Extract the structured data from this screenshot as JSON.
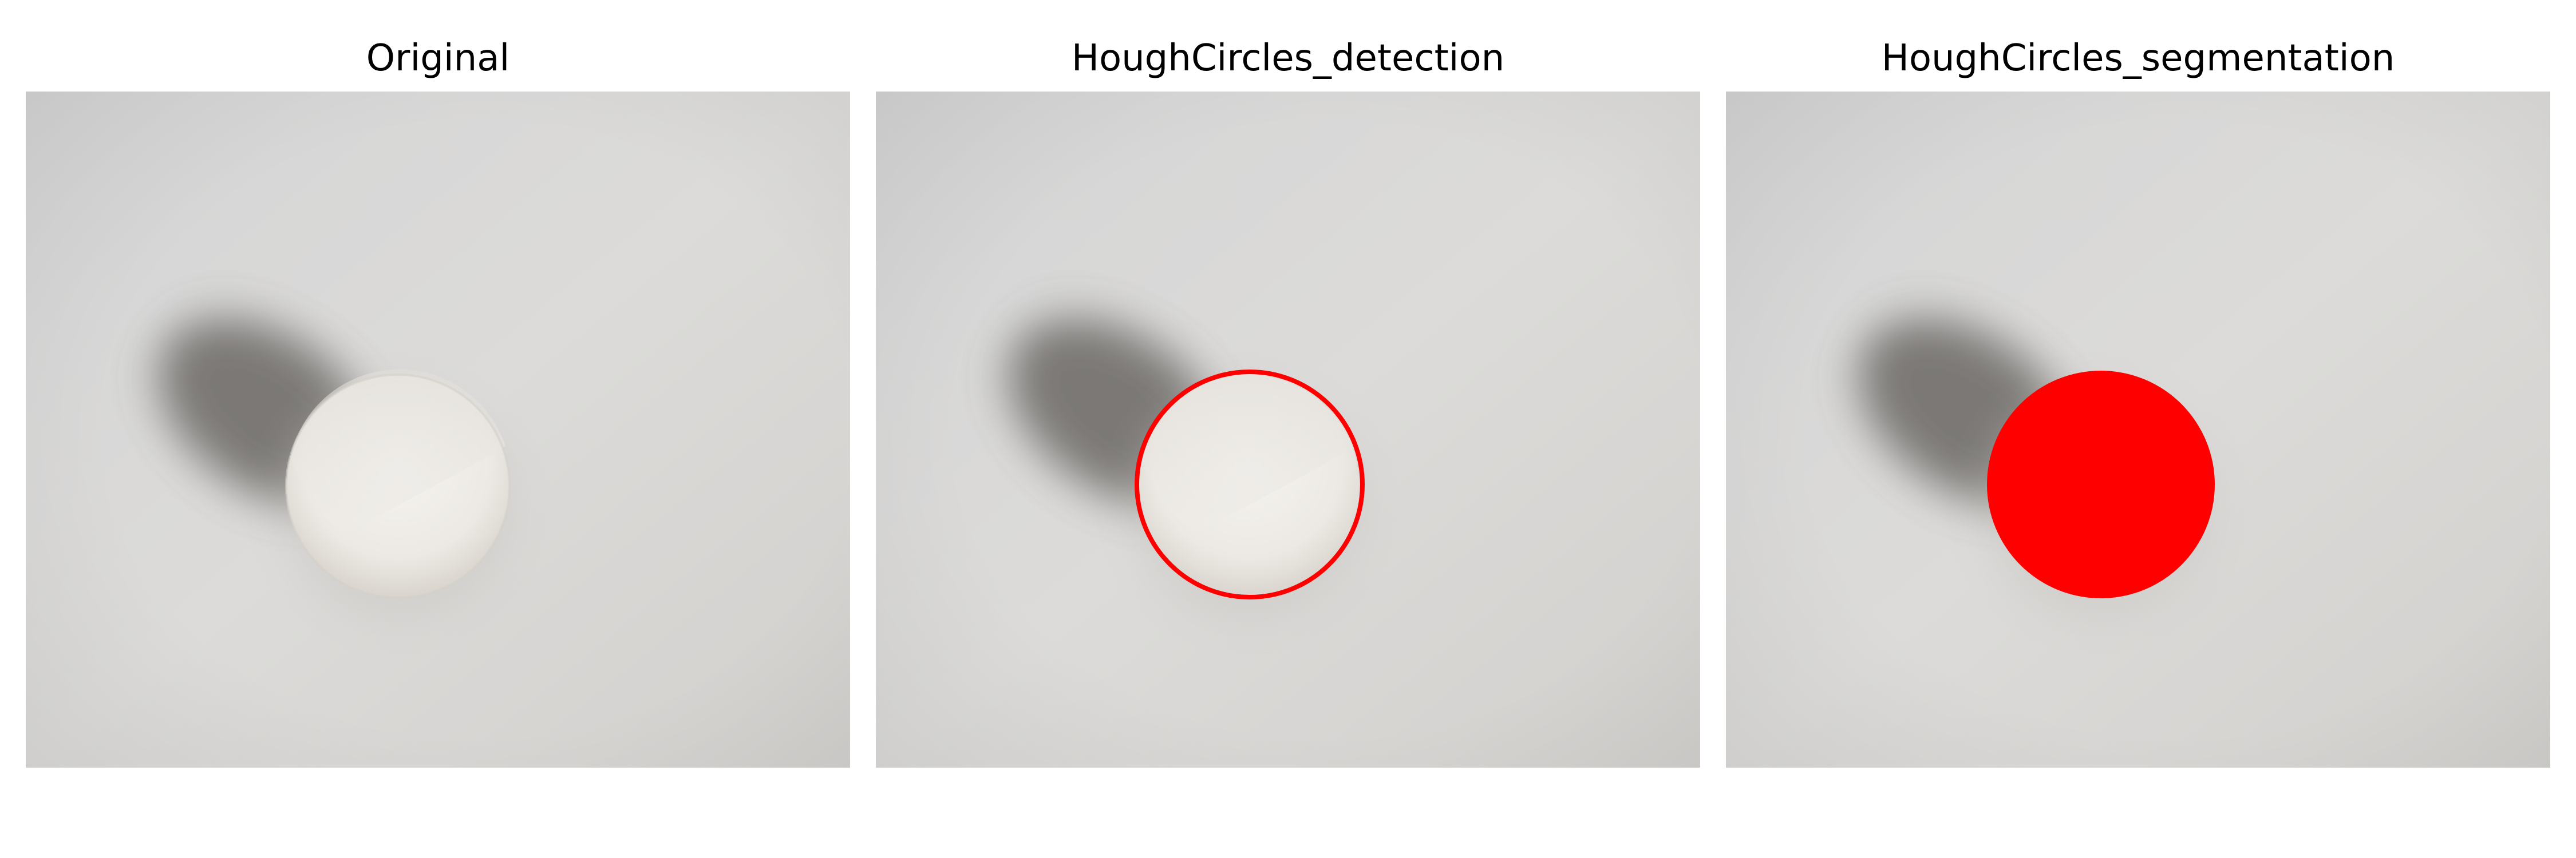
{
  "panels": [
    {
      "title": "Original"
    },
    {
      "title": "HoughCircles_detection"
    },
    {
      "title": "HoughCircles_segmentation"
    }
  ],
  "colors": {
    "paper": "#d9d8d6",
    "ball": "#f1efec",
    "detection_circle": "#ff0000",
    "segmentation_fill": "#ff0000"
  }
}
